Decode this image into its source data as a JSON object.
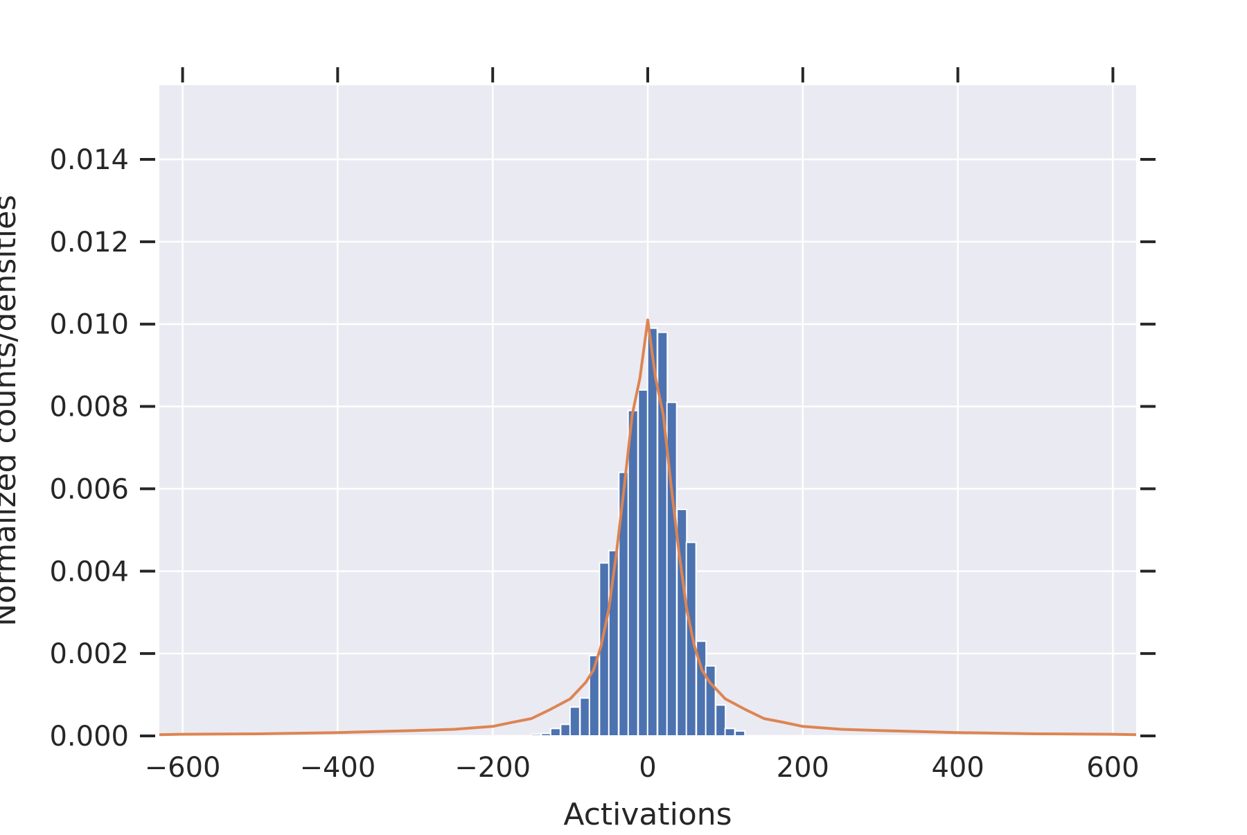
{
  "chart_data": {
    "type": "bar",
    "xlabel": "Activations",
    "ylabel": "Normalized counts/densities",
    "xlim": [
      -630,
      630
    ],
    "ylim": [
      0,
      0.0158
    ],
    "grid": true,
    "x_ticks": [
      -600,
      -400,
      -200,
      0,
      200,
      400,
      600
    ],
    "x_tick_labels": [
      "−600",
      "−400",
      "−200",
      "0",
      "200",
      "400",
      "600"
    ],
    "y_ticks": [
      0.0,
      0.002,
      0.004,
      0.006,
      0.008,
      0.01,
      0.012,
      0.014
    ],
    "y_tick_labels": [
      "0.000",
      "0.002",
      "0.004",
      "0.006",
      "0.008",
      "0.010",
      "0.012",
      "0.014"
    ],
    "colors": {
      "background": "#eaeaf2",
      "grid": "#ffffff",
      "bars": "#4c72b0",
      "curve": "#dd8452",
      "text": "#262626"
    },
    "series": [
      {
        "type": "histogram",
        "bin_width": 12.5,
        "bins": [
          {
            "x": -144,
            "value": 4e-05
          },
          {
            "x": -131,
            "value": 6e-05
          },
          {
            "x": -119,
            "value": 0.00018
          },
          {
            "x": -106,
            "value": 0.00028
          },
          {
            "x": -94,
            "value": 0.0007
          },
          {
            "x": -81,
            "value": 0.00092
          },
          {
            "x": -69,
            "value": 0.00195
          },
          {
            "x": -56,
            "value": 0.0042
          },
          {
            "x": -44,
            "value": 0.0045
          },
          {
            "x": -31,
            "value": 0.0064
          },
          {
            "x": -19,
            "value": 0.0079
          },
          {
            "x": -6,
            "value": 0.0084
          },
          {
            "x": 6,
            "value": 0.0099
          },
          {
            "x": 19,
            "value": 0.0098
          },
          {
            "x": 31,
            "value": 0.0081
          },
          {
            "x": 44,
            "value": 0.0055
          },
          {
            "x": 56,
            "value": 0.0047
          },
          {
            "x": 69,
            "value": 0.0023
          },
          {
            "x": 81,
            "value": 0.0017
          },
          {
            "x": 94,
            "value": 0.00075
          },
          {
            "x": 106,
            "value": 0.00018
          },
          {
            "x": 119,
            "value": 0.00012
          }
        ]
      },
      {
        "type": "line",
        "points": [
          [
            -630,
            3e-05
          ],
          [
            -600,
            4e-05
          ],
          [
            -500,
            5e-05
          ],
          [
            -400,
            8e-05
          ],
          [
            -300,
            0.00013
          ],
          [
            -250,
            0.00016
          ],
          [
            -200,
            0.00023
          ],
          [
            -175,
            0.00033
          ],
          [
            -150,
            0.00042
          ],
          [
            -125,
            0.00065
          ],
          [
            -100,
            0.0009
          ],
          [
            -80,
            0.0013
          ],
          [
            -70,
            0.0016
          ],
          [
            -60,
            0.0022
          ],
          [
            -50,
            0.0031
          ],
          [
            -40,
            0.0045
          ],
          [
            -30,
            0.0061
          ],
          [
            -20,
            0.0078
          ],
          [
            -10,
            0.0087
          ],
          [
            0,
            0.0101
          ],
          [
            10,
            0.0087
          ],
          [
            20,
            0.0078
          ],
          [
            30,
            0.0061
          ],
          [
            40,
            0.0045
          ],
          [
            50,
            0.0031
          ],
          [
            60,
            0.0022
          ],
          [
            70,
            0.0016
          ],
          [
            80,
            0.0013
          ],
          [
            100,
            0.0009
          ],
          [
            125,
            0.00065
          ],
          [
            150,
            0.00042
          ],
          [
            175,
            0.00033
          ],
          [
            200,
            0.00023
          ],
          [
            250,
            0.00016
          ],
          [
            300,
            0.00013
          ],
          [
            400,
            8e-05
          ],
          [
            500,
            5e-05
          ],
          [
            600,
            4e-05
          ],
          [
            630,
            3e-05
          ]
        ]
      }
    ]
  }
}
